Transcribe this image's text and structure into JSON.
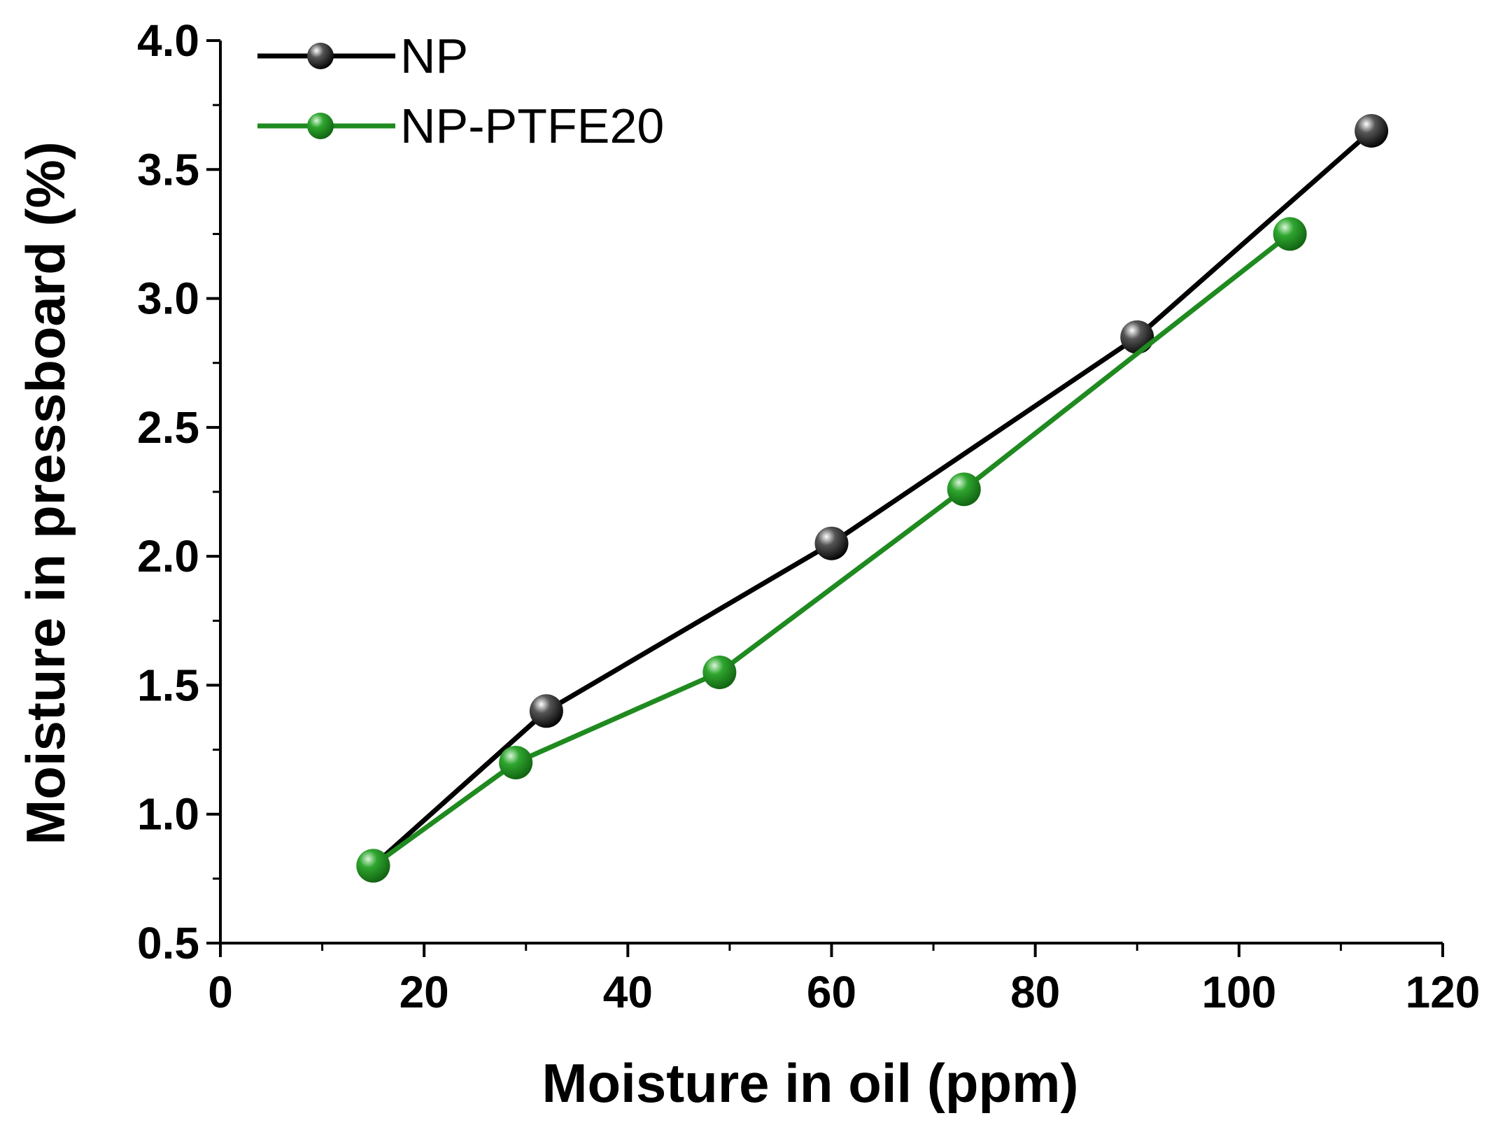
{
  "chart_data": {
    "type": "line",
    "title": "",
    "xlabel": "Moisture in oil (ppm)",
    "ylabel": "Moisture in pressboard (%)",
    "xlim": [
      0,
      120
    ],
    "ylim": [
      0.5,
      4.0
    ],
    "xticks": [
      0,
      20,
      40,
      60,
      80,
      100,
      120
    ],
    "xtick_labels": [
      "0",
      "20",
      "40",
      "60",
      "80",
      "100",
      "120"
    ],
    "yticks": [
      0.5,
      1.0,
      1.5,
      2.0,
      2.5,
      3.0,
      3.5,
      4.0
    ],
    "ytick_labels": [
      "0.5",
      "1.0",
      "1.5",
      "2.0",
      "2.5",
      "3.0",
      "3.5",
      "4.0"
    ],
    "legend_position": "top-left",
    "grid": false,
    "series": [
      {
        "name": "NP",
        "color": "#000000",
        "x": [
          15,
          32,
          60,
          90,
          113
        ],
        "y": [
          0.8,
          1.4,
          2.05,
          2.85,
          3.65
        ]
      },
      {
        "name": "NP-PTFE20",
        "color": "#1f8a1f",
        "x": [
          15,
          29,
          49,
          73,
          105
        ],
        "y": [
          0.8,
          1.2,
          1.55,
          2.26,
          3.25
        ]
      }
    ]
  }
}
